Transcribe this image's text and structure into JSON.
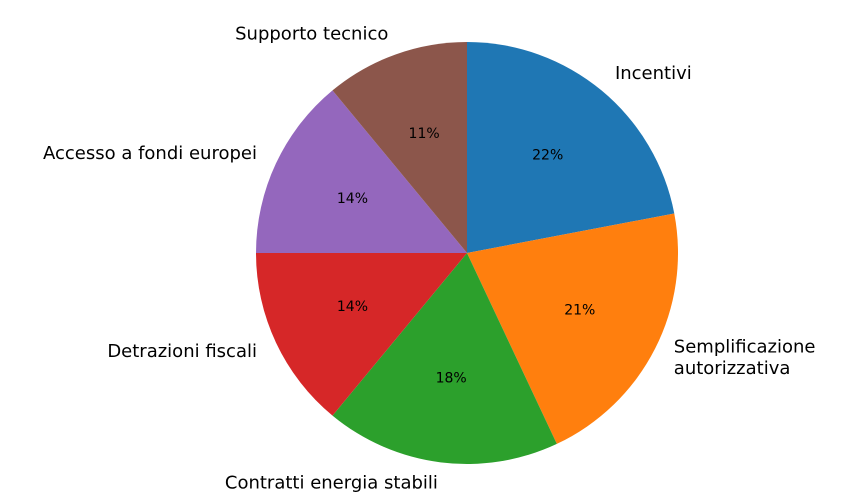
{
  "chart_data": {
    "type": "pie",
    "categories": [
      "Incentivi",
      "Semplificazione\nautorizzativa",
      "Contratti energia stabili",
      "Detrazioni fiscali",
      "Accesso a fondi europei",
      "Supporto tecnico"
    ],
    "values": [
      22,
      21,
      18,
      14,
      14,
      11
    ],
    "value_labels": [
      "22%",
      "21%",
      "18%",
      "14%",
      "14%",
      "11%"
    ],
    "colors": [
      "#1f77b4",
      "#ff7f0e",
      "#2ca02c",
      "#d62728",
      "#9467bd",
      "#8c564b"
    ],
    "start_angle": 90,
    "direction": "clockwise"
  }
}
